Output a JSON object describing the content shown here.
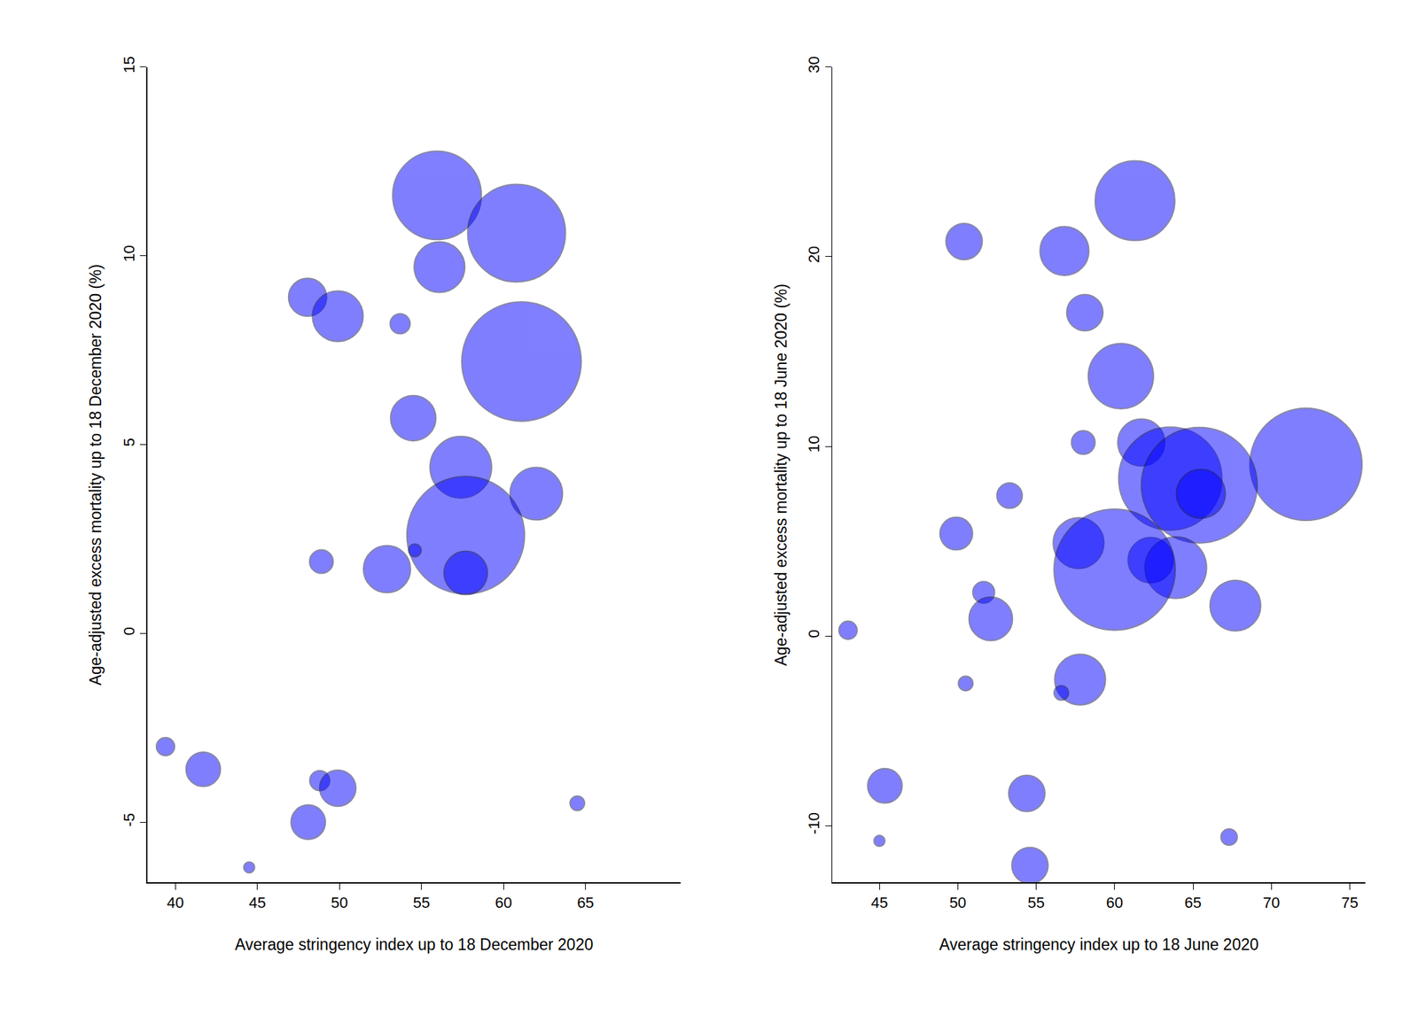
{
  "chart_data": [
    {
      "type": "scatter",
      "marker": "circle",
      "color": "#0000ff",
      "x_label": "Average stringency index up to 18 December 2020",
      "y_label": "Age-adjusted excess mortality up to 18 December 2020 (%)",
      "xlim": [
        38.3,
        70.8
      ],
      "xticks": [
        40,
        45,
        50,
        55,
        60,
        65
      ],
      "ylim": [
        -6.6,
        15
      ],
      "yticks": [
        -5,
        0,
        5,
        10,
        15
      ],
      "grid": false,
      "x": [
        55.95,
        60.8,
        56.1,
        48.06,
        49.9,
        53.7,
        61.1,
        54.5,
        57.4,
        62.0,
        57.7,
        54.6,
        48.9,
        52.9,
        57.7,
        39.4,
        41.7,
        48.8,
        49.9,
        64.5,
        48.1,
        44.5
      ],
      "values": [
        11.6,
        10.6,
        9.7,
        8.9,
        8.4,
        8.2,
        7.2,
        5.7,
        4.4,
        3.7,
        2.6,
        2.2,
        1.9,
        1.7,
        1.6,
        -3.0,
        -3.6,
        -3.9,
        -4.1,
        -4.5,
        -5.0,
        -6.2
      ],
      "sizes": [
        49,
        54,
        28,
        21,
        28,
        11,
        66,
        25,
        34,
        29,
        65,
        7,
        13,
        26,
        24,
        10,
        19,
        11,
        20,
        8,
        19,
        6
      ]
    },
    {
      "type": "scatter",
      "marker": "circle",
      "color": "#0000ff",
      "x_label": "Average stringency index up to 18 June 2020",
      "y_label": "Age-adjusted excess mortality up to 18 June 2020 (%)",
      "xlim": [
        42.0,
        76.0
      ],
      "xticks": [
        45,
        50,
        55,
        60,
        65,
        70,
        75
      ],
      "ylim": [
        -13.0,
        30
      ],
      "yticks": [
        -10,
        0,
        10,
        20,
        30
      ],
      "grid": false,
      "x": [
        61.3,
        50.4,
        56.8,
        58.1,
        60.4,
        58.0,
        61.7,
        72.2,
        63.55,
        65.4,
        65.5,
        53.3,
        49.9,
        57.7,
        62.3,
        63.9,
        60.0,
        51.65,
        52.1,
        67.7,
        43.0,
        57.8,
        50.5,
        56.6,
        45.35,
        54.4,
        67.3,
        45.0,
        54.6
      ],
      "values": [
        22.95,
        20.8,
        20.3,
        17.05,
        13.7,
        10.2,
        10.2,
        9.05,
        8.3,
        7.95,
        7.5,
        7.4,
        5.4,
        4.9,
        4.0,
        3.6,
        3.5,
        2.3,
        0.9,
        1.6,
        0.3,
        -2.3,
        -2.5,
        -3.0,
        -7.9,
        -8.3,
        -10.6,
        -10.8,
        -12.1
      ],
      "sizes": [
        44,
        20,
        27,
        20,
        36,
        13,
        26,
        62,
        57,
        64,
        27,
        14,
        18,
        28,
        25,
        34,
        67,
        12,
        24,
        28,
        10,
        28,
        8,
        8,
        19,
        20,
        9,
        6,
        20
      ]
    }
  ]
}
